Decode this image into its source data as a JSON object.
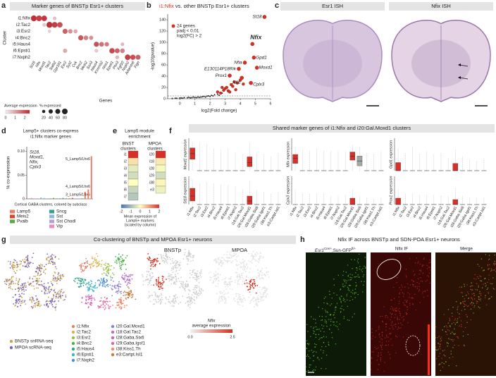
{
  "a": {
    "letter": "a",
    "title": "Marker genes of BNSTp Esr1+ clusters",
    "y_label": "Cluster",
    "x_label": "Genes",
    "clusters": [
      "i1:Nfix",
      "i2:Tac2",
      "i3:Esr2",
      "i4:Bnc2",
      "i5:Haus4",
      "i6:Epsti1",
      "i7:Nxph2"
    ],
    "genes": [
      "St18",
      "Nfix",
      "Moxd1",
      "Tac2",
      "Satb2",
      "Gpr101",
      "Esr2",
      "Syt2",
      "Cck",
      "Bnc2",
      "Meis2",
      "Sox3",
      "Haus4",
      "Kcnmb2",
      "Nos1",
      "Epsti1",
      "Pbx3",
      "Fgf10",
      "Nxph2",
      "Adamts6",
      "Fign"
    ],
    "dots": [
      [
        0,
        0,
        85,
        2.4
      ],
      [
        0,
        1,
        80,
        2.2
      ],
      [
        0,
        2,
        75,
        2.3
      ],
      [
        0,
        4,
        20,
        0.6
      ],
      [
        1,
        3,
        90,
        2.4
      ],
      [
        1,
        4,
        80,
        2.2
      ],
      [
        1,
        5,
        70,
        2.0
      ],
      [
        1,
        2,
        20,
        0.5
      ],
      [
        2,
        6,
        60,
        1.8
      ],
      [
        2,
        7,
        40,
        1.2
      ],
      [
        2,
        8,
        30,
        0.9
      ],
      [
        2,
        3,
        15,
        0.4
      ],
      [
        3,
        9,
        60,
        1.9
      ],
      [
        3,
        10,
        45,
        1.4
      ],
      [
        3,
        11,
        35,
        1.2
      ],
      [
        4,
        12,
        60,
        2.0
      ],
      [
        4,
        13,
        50,
        1.6
      ],
      [
        4,
        14,
        40,
        1.5
      ],
      [
        4,
        17,
        20,
        0.7
      ],
      [
        5,
        15,
        70,
        2.1
      ],
      [
        5,
        16,
        55,
        1.8
      ],
      [
        5,
        17,
        45,
        1.4
      ],
      [
        5,
        6,
        35,
        0.9
      ],
      [
        5,
        12,
        20,
        0.5
      ],
      [
        6,
        18,
        75,
        2.2
      ],
      [
        6,
        19,
        65,
        2.0
      ],
      [
        6,
        20,
        55,
        1.8
      ],
      [
        6,
        16,
        25,
        0.7
      ]
    ],
    "expression_legend": {
      "title": "Average expression",
      "lim": [
        0,
        2.5
      ],
      "ticks": [
        0,
        1,
        2
      ]
    },
    "size_legend": {
      "title": "% expressed",
      "ticks": [
        20,
        40,
        60,
        80
      ]
    },
    "color_low": "#f4f0f0",
    "color_high": "#c0262d"
  },
  "b": {
    "letter": "b",
    "title_highlight": "i1:Nfix",
    "title": " vs. other BNSTp Esr1+ clusters",
    "legend": [
      "24 genes",
      "padj < 0.01",
      "log2(FC) > 2"
    ],
    "x_label": "log2(Fold change)",
    "y_label": "-log10(pvalue)",
    "xlim": [
      -0.8,
      6
    ],
    "xticks": [
      0,
      1,
      2,
      3,
      4,
      5,
      6
    ],
    "ylim": [
      0,
      150
    ],
    "yticks": [
      0,
      20,
      40,
      60,
      80,
      100,
      120,
      140
    ],
    "threshold": 5,
    "color": "#d7301f",
    "other_color": "#222222",
    "genes": [
      {
        "name": "St18",
        "x": 5.6,
        "y": 145
      },
      {
        "name": "Nfix",
        "x": 4.8,
        "y": 97
      },
      {
        "name": "Gpd1",
        "x": 4.9,
        "y": 73
      },
      {
        "name": "Nfia",
        "x": 4.3,
        "y": 64
      },
      {
        "name": "E130114P18Rik",
        "x": 3.9,
        "y": 53
      },
      {
        "name": "Moxd1",
        "x": 5.1,
        "y": 55
      },
      {
        "name": "Prox1",
        "x": 3.3,
        "y": 41
      },
      {
        "name": "Nfib",
        "x": 4.1,
        "y": 37
      },
      {
        "name": "Cplx3",
        "x": 4.7,
        "y": 28
      }
    ],
    "sig_x": [
      2.5,
      2.7,
      2.9,
      3.0,
      3.1,
      3.2,
      3.4,
      3.5,
      3.6,
      3.8,
      4.0,
      4.2,
      3.3,
      2.8,
      3.7
    ],
    "sig_y": [
      12,
      10,
      15,
      18,
      20,
      14,
      25,
      22,
      30,
      28,
      33,
      26,
      12,
      20,
      16
    ],
    "other_x": [
      -0.5,
      -0.3,
      -0.2,
      0,
      0.1,
      0.2,
      0.3,
      0.5,
      0.6,
      0.8,
      0.9,
      1.0,
      1.2,
      1.3,
      1.5,
      1.6,
      1.7,
      1.8,
      1.9,
      2.0,
      2.1,
      2.2,
      2.3,
      2.5,
      2.6,
      2.7,
      2.8,
      1.1,
      0.7,
      1.4
    ],
    "other_y": [
      0.5,
      1,
      0.8,
      1.2,
      1.5,
      1,
      2,
      1.8,
      2.5,
      2,
      3,
      2.2,
      3,
      2.5,
      3.5,
      4,
      3,
      4.5,
      5,
      4,
      6,
      5,
      7,
      8,
      6,
      9,
      10,
      2,
      1.5,
      3
    ]
  },
  "c": {
    "letter": "c",
    "panels": [
      "Esr1 ISH",
      "Nfix ISH"
    ]
  },
  "d": {
    "letter": "d",
    "title": [
      "Lamp5+ clusters co-express",
      "i1:Nfix marker genes"
    ],
    "annotation": [
      "St18,",
      "Moxd1,",
      "Nfix,",
      "Cplx3"
    ],
    "y_label": "% co-expression",
    "ylim": [
      0,
      0.11
    ],
    "yticks": [
      0,
      0.05,
      {
        "value": 0.1,
        "label": "0.10"
      }
    ],
    "x_label": "Cortical GABA clusters, colored by subclass",
    "categories": [
      null,
      null,
      null,
      null,
      null,
      null,
      null,
      null,
      null,
      null,
      null,
      null,
      null,
      null,
      null,
      null,
      null,
      null,
      "3_Lamp5/Lhx6",
      "4_Lamp5/Lhx6",
      "5_Lamp5/Lhx6"
    ],
    "values": [
      0.001,
      0.002,
      0.001,
      0.001,
      0.003,
      0.002,
      0.001,
      0.001,
      0.002,
      0.001,
      0.001,
      0.002,
      0.001,
      0.001,
      0.002,
      0.001,
      0.001,
      0.001,
      0.015,
      0.02,
      0.09
    ],
    "subclass": [
      6,
      6,
      6,
      4,
      4,
      4,
      5,
      2,
      2,
      2,
      2,
      3,
      3,
      1,
      1,
      6,
      4,
      2,
      0,
      0,
      0
    ],
    "legend": [
      {
        "name": "Lamp5",
        "color": "#e8806c"
      },
      {
        "name": "Meis2",
        "color": "#d9452b"
      },
      {
        "name": "Pvalb",
        "color": "#5aa845"
      },
      {
        "name": "Sncg",
        "color": "#3a9e8f"
      },
      {
        "name": "Sst",
        "color": "#8fb8de"
      },
      {
        "name": "Sst Chodl",
        "color": "#b59fd6"
      },
      {
        "name": "Vip",
        "color": "#e58fc0"
      }
    ]
  },
  "e": {
    "letter": "e",
    "title": [
      "Lamp5 module",
      "enrichment"
    ],
    "bnst": {
      "title": [
        "BNST",
        "clusters"
      ],
      "clusters": [
        "i1",
        "i2",
        "i3",
        "i4",
        "i5",
        "i6",
        "i7"
      ],
      "values": [
        2.0,
        0.3,
        -0.3,
        -0.5,
        0.0,
        -0.6,
        -0.8
      ]
    },
    "mpoa": {
      "title": [
        "MPOA",
        "clusters"
      ],
      "clusters": [
        "i20",
        "i18",
        "i28",
        "i29",
        "i38",
        "e3"
      ],
      "values": [
        2.1,
        0.2,
        -0.1,
        -0.5,
        0.1,
        -0.2
      ]
    },
    "colorbar": {
      "lim": [
        -2,
        2
      ],
      "ticks": [
        -2,
        -1,
        0,
        1,
        2
      ],
      "label": [
        "Mean expression of",
        "Lamp5+ markers",
        "(scaled by column)"
      ],
      "colors": [
        "#4575b4",
        "#ffffbf",
        "#d73027"
      ]
    }
  },
  "f": {
    "letter": "f",
    "title": "Shared marker genes of i1:Nfix and i20:Gal.Moxd1 clusters",
    "categories": [
      "i1:Nfix",
      "i2:Tac2",
      "i3:Esr2",
      "i4:Bnc2",
      "i5:Haus4",
      "i6:Epsti1",
      "i7:Nxph2",
      "i18:Gal.Tac2",
      "i20:Gal.Moxd1",
      "i28:Gaba.Six6",
      "i29:Gaba.Igsf1",
      "i38:Kiss1.Th",
      "e3:Cartpt.Isl1"
    ],
    "colors": [
      "#d73027",
      "#a6a6a6",
      "#a6a6a6",
      "#a6a6a6",
      "#a6a6a6",
      "#a6a6a6",
      "#a6a6a6",
      "#a6a6a6",
      "#d73027",
      "#a6a6a6",
      "#a6a6a6",
      "#a6a6a6",
      "#a6a6a6"
    ],
    "label_colors": [
      "#d73027",
      "#222222",
      "#222222",
      "#222222",
      "#222222",
      "#222222",
      "#222222",
      "#222222",
      "#d73027",
      "#222222",
      "#222222",
      "#222222",
      "#222222"
    ],
    "ylim": [
      0,
      4
    ],
    "genes": [
      {
        "y_label": "Moxd1 expression",
        "q1": [
          1.4,
          0,
          0,
          0,
          0,
          0,
          0,
          0,
          0.5,
          0,
          0,
          0,
          0
        ],
        "median": [
          2.1,
          0,
          0,
          0,
          0,
          0,
          0,
          0,
          1.0,
          0,
          0,
          0,
          0
        ],
        "q3": [
          2.8,
          0,
          0,
          0,
          0,
          0,
          0,
          0,
          1.7,
          0,
          0,
          0,
          0
        ],
        "max": [
          3.6,
          3.5,
          3.3,
          2.8,
          2.6,
          2.8,
          2.3,
          2.0,
          3.5,
          2.2,
          2.0,
          1.8,
          2.2
        ]
      },
      {
        "y_label": "Nfix expression",
        "q1": [
          0.9,
          0,
          0,
          0,
          0,
          0,
          0,
          0,
          1.3,
          0.6,
          0,
          0,
          0
        ],
        "median": [
          1.5,
          0,
          0,
          0,
          0,
          0,
          0,
          0,
          1.8,
          1.2,
          0,
          0,
          0
        ],
        "q3": [
          2.0,
          0,
          0,
          0,
          0,
          0,
          0,
          0,
          2.3,
          1.8,
          0,
          0,
          0
        ],
        "max": [
          3.0,
          2.6,
          2.5,
          2.7,
          2.5,
          2.5,
          2.4,
          2.4,
          3.2,
          3.0,
          2.2,
          2.0,
          2.4
        ]
      },
      {
        "y_label": "Gpd1 expression",
        "q1": [
          0,
          0,
          0,
          0,
          0,
          0,
          0,
          0,
          0,
          0,
          0,
          0,
          0
        ],
        "median": [
          0,
          0,
          0,
          0,
          0,
          0,
          0,
          0,
          0,
          0,
          0,
          0,
          0
        ],
        "q3": [
          1.0,
          0,
          0,
          0,
          0,
          0,
          0,
          0,
          0.9,
          0,
          0,
          0,
          0
        ],
        "max": [
          2.8,
          2.2,
          3.0,
          2.0,
          2.4,
          2.0,
          2.2,
          1.6,
          2.6,
          1.8,
          1.4,
          1.2,
          1.5
        ]
      },
      {
        "y_label": "St18 expression",
        "q1": [
          0.5,
          0,
          0,
          0,
          0,
          0,
          0,
          0,
          0,
          0,
          0,
          0,
          0
        ],
        "median": [
          1.2,
          0,
          0,
          0,
          0,
          0,
          0,
          0,
          0.5,
          0,
          0,
          0,
          0
        ],
        "q3": [
          2.3,
          0,
          0,
          0,
          0,
          0,
          0,
          0,
          1.2,
          0,
          0,
          0,
          0
        ],
        "max": [
          3.6,
          3.0,
          3.2,
          3.0,
          2.8,
          2.8,
          2.6,
          2.2,
          3.4,
          2.0,
          1.8,
          1.5,
          1.8
        ]
      },
      {
        "y_label": "Cplx3 expression",
        "q1": [
          0,
          0,
          0,
          0,
          0,
          0,
          0,
          0,
          0,
          0,
          0,
          0,
          0
        ],
        "median": [
          0,
          0,
          0,
          0,
          0,
          0,
          0,
          0,
          0,
          0,
          0,
          0,
          0
        ],
        "q3": [
          0,
          0,
          0,
          0,
          0,
          0,
          0,
          0,
          0.9,
          0,
          0,
          0,
          0
        ],
        "max": [
          2.2,
          1.6,
          1.6,
          1.5,
          1.5,
          1.2,
          1.2,
          1.4,
          2.2,
          1.2,
          1.0,
          0.8,
          1.0
        ]
      },
      {
        "y_label": "Prox1 expression",
        "q1": [
          0,
          0,
          0,
          0,
          0,
          0,
          0,
          0,
          0,
          0,
          0,
          0,
          0
        ],
        "median": [
          0,
          0,
          0,
          0,
          0,
          0,
          0,
          0,
          0,
          0,
          0,
          0,
          0
        ],
        "q3": [
          0.9,
          0,
          0,
          0,
          0,
          0,
          0,
          0,
          0.7,
          0,
          0,
          0,
          0
        ],
        "max": [
          2.2,
          1.5,
          1.6,
          1.4,
          1.4,
          1.4,
          1.3,
          1.2,
          2.4,
          1.2,
          1.0,
          1.0,
          1.0
        ]
      }
    ]
  },
  "g": {
    "letter": "g",
    "title": "Co-clustering of BNSTp and MPOA Esr1+ neurons",
    "dataset_legend": [
      {
        "name": "BNSTp snRNA-seq",
        "color": "#c9a44c"
      },
      {
        "name": "MPOA scRNA-seq",
        "color": "#7a67b3"
      }
    ],
    "cluster_legend": [
      {
        "name": "i1:Nfix",
        "color": "#e8806c"
      },
      {
        "name": "i2:Tac2",
        "color": "#d9b44a"
      },
      {
        "name": "i3:Esr2",
        "color": "#9cbf3b"
      },
      {
        "name": "i4:Bnc2",
        "color": "#4daf4a"
      },
      {
        "name": "i5:Haus4",
        "color": "#35a48c"
      },
      {
        "name": "i6:Epsti1",
        "color": "#3fb7c9"
      },
      {
        "name": "i7:Nxph2",
        "color": "#4c8fd1"
      },
      {
        "name": "i20:Gal.Moxd1",
        "color": "#8f7fd6"
      },
      {
        "name": "i18:Gal.Tac2",
        "color": "#b86fcf"
      },
      {
        "name": "i28:Gaba.Six6",
        "color": "#d85fb3"
      },
      {
        "name": "i29:Gaba.Igsf1",
        "color": "#e8609a"
      },
      {
        "name": "i38:Kiss1.Th",
        "color": "#f08a6a"
      },
      {
        "name": "e3:Cartpt.Isl1",
        "color": "#c77c3a"
      }
    ],
    "panels": [
      "BNSTp",
      "MPOA"
    ],
    "colorbar": {
      "title": [
        "Nfix",
        "average expression"
      ],
      "lim": [
        0,
        2.5
      ],
      "ticks": [
        {
          "value": 0,
          "label": "0.0"
        },
        2.5
      ],
      "colors": [
        "#f2f2f2",
        "#d7301f"
      ]
    }
  },
  "h": {
    "letter": "h",
    "title": "Nfix IF across BNSTp and SDN-POA Esr1+ neurons",
    "first_panel": [
      "Esr1",
      "Cre/+",
      ";Sun-GFP",
      "fl/+"
    ],
    "panels": [
      "Nfix IF",
      "Merge"
    ]
  }
}
